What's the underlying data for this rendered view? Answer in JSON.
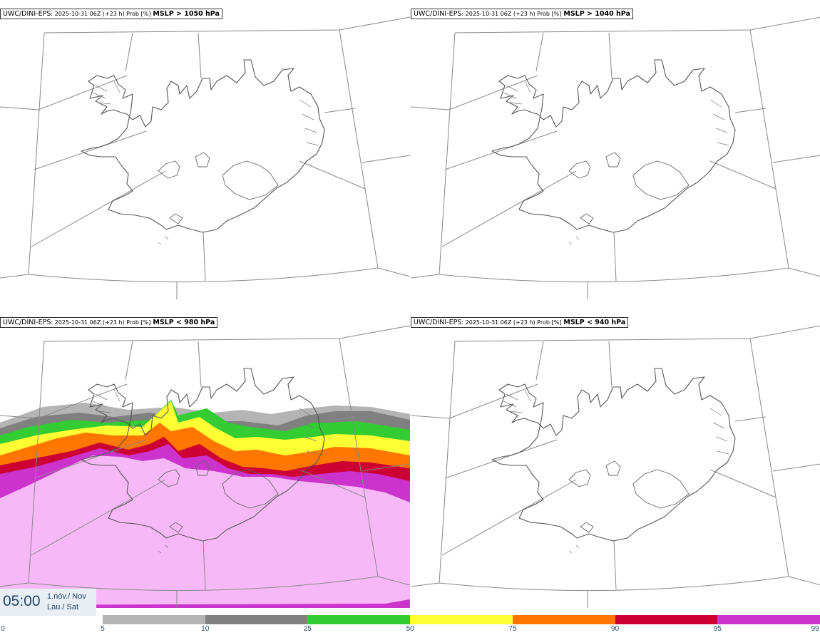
{
  "panels": [
    {
      "source": "UWC/DINI-EPS",
      "meta": ": 2025-10-31 06Z (+23 h) Prob [%]",
      "variable": "MSLP > 1050 hPa"
    },
    {
      "source": "UWC/DINI-EPS",
      "meta": ": 2025-10-31 06Z (+23 h) Prob [%]",
      "variable": "MSLP > 1040 hPa"
    },
    {
      "source": "UWC/DINI-EPS",
      "meta": ": 2025-10-31 06Z (+23 h) Prob [%]",
      "variable": "MSLP < 980 hPa"
    },
    {
      "source": "UWC/DINI-EPS",
      "meta": ": 2025-10-31 06Z (+23 h) Prob [%]",
      "variable": "MSLP < 940 hPa"
    }
  ],
  "valid_time": {
    "time": "05:00",
    "date_local": "1.nóv./ Nov",
    "weekday": "Lau./ Sat"
  },
  "colorbar": {
    "ticks": [
      "0",
      "5",
      "10",
      "25",
      "50",
      "75",
      "90",
      "95",
      "99"
    ],
    "colors": [
      "#ffffff",
      "#b4b4b4",
      "#808080",
      "#33cc33",
      "#ffff33",
      "#ff7700",
      "#cc0033",
      "#cc33cc",
      "#f7b8f7"
    ]
  },
  "probability_colors": {
    "p5": "#b4b4b4",
    "p10": "#808080",
    "p25": "#33cc33",
    "p50": "#ffff33",
    "p75": "#ff7700",
    "p90": "#cc0033",
    "p95": "#cc33cc",
    "p99": "#f7b8f7"
  }
}
